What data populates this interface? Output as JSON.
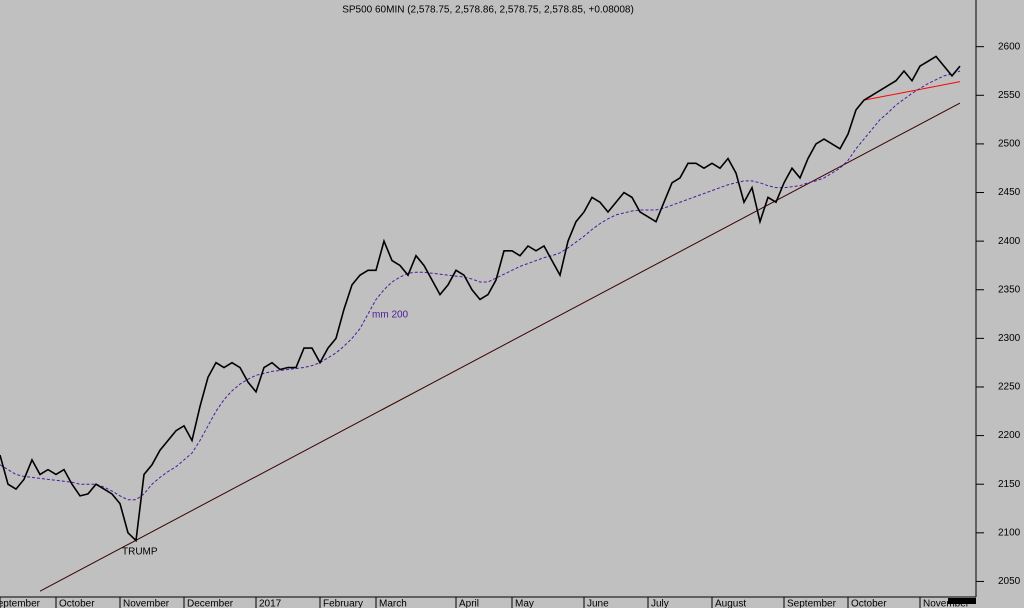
{
  "chart_data": {
    "type": "line",
    "title": "SP500 60MIN (2,578.75, 2,578.86, 2,578.75, 2,578.85, +0.08008)",
    "categories": [
      "September",
      null,
      null,
      null,
      null,
      null,
      null,
      "October",
      null,
      null,
      null,
      null,
      null,
      null,
      null,
      "November",
      null,
      null,
      null,
      null,
      null,
      null,
      null,
      "December",
      null,
      null,
      null,
      null,
      null,
      null,
      null,
      null,
      "2017",
      null,
      null,
      null,
      null,
      null,
      null,
      null,
      "February",
      null,
      null,
      null,
      null,
      null,
      null,
      "March",
      null,
      null,
      null,
      null,
      null,
      null,
      null,
      null,
      null,
      "April",
      null,
      null,
      null,
      null,
      null,
      null,
      "May",
      null,
      null,
      null,
      null,
      null,
      null,
      null,
      null,
      "June",
      null,
      null,
      null,
      null,
      null,
      null,
      null,
      "July",
      null,
      null,
      null,
      null,
      null,
      null,
      null,
      "August",
      null,
      null,
      null,
      null,
      null,
      null,
      null,
      null,
      "September",
      null,
      null,
      null,
      null,
      null,
      null,
      null,
      "October",
      null,
      null,
      null,
      null,
      null,
      null,
      null,
      null,
      "November",
      null,
      null,
      null,
      null,
      null
    ],
    "series": [
      {
        "name": "SP500",
        "color": "#000000",
        "values": [
          2180,
          2150,
          2145,
          2155,
          2175,
          2160,
          2165,
          2160,
          2165,
          2150,
          2138,
          2140,
          2150,
          2145,
          2140,
          2130,
          2100,
          2092,
          2160,
          2170,
          2185,
          2195,
          2205,
          2210,
          2195,
          2230,
          2260,
          2275,
          2270,
          2275,
          2270,
          2255,
          2245,
          2270,
          2275,
          2268,
          2270,
          2270,
          2290,
          2290,
          2275,
          2290,
          2300,
          2330,
          2355,
          2365,
          2370,
          2370,
          2400,
          2380,
          2375,
          2365,
          2385,
          2375,
          2360,
          2345,
          2355,
          2370,
          2365,
          2350,
          2340,
          2345,
          2360,
          2390,
          2390,
          2385,
          2395,
          2390,
          2395,
          2380,
          2365,
          2400,
          2420,
          2430,
          2445,
          2440,
          2430,
          2440,
          2450,
          2445,
          2430,
          2425,
          2420,
          2440,
          2460,
          2465,
          2480,
          2480,
          2475,
          2480,
          2475,
          2485,
          2470,
          2440,
          2455,
          2420,
          2445,
          2440,
          2460,
          2475,
          2465,
          2485,
          2500,
          2505,
          2500,
          2495,
          2510,
          2535,
          2545,
          2550,
          2555,
          2560,
          2565,
          2575,
          2565,
          2580,
          2585,
          2590,
          2580,
          2570,
          2580
        ]
      },
      {
        "name": "mm 200",
        "color": "#4b1a9e",
        "dashed": true,
        "values": [
          2170,
          2165,
          2160,
          2158,
          2157,
          2156,
          2155,
          2154,
          2153,
          2152,
          2150,
          2150,
          2150,
          2147,
          2143,
          2138,
          2134,
          2134,
          2140,
          2150,
          2157,
          2163,
          2168,
          2175,
          2182,
          2195,
          2210,
          2225,
          2237,
          2246,
          2253,
          2258,
          2262,
          2264,
          2266,
          2267,
          2268,
          2269,
          2270,
          2272,
          2275,
          2280,
          2285,
          2292,
          2300,
          2310,
          2325,
          2340,
          2350,
          2358,
          2363,
          2367,
          2368,
          2368,
          2367,
          2366,
          2365,
          2364,
          2363,
          2361,
          2358,
          2358,
          2362,
          2366,
          2370,
          2374,
          2377,
          2380,
          2383,
          2385,
          2388,
          2393,
          2399,
          2405,
          2412,
          2418,
          2423,
          2427,
          2429,
          2431,
          2432,
          2432,
          2432,
          2434,
          2437,
          2440,
          2443,
          2446,
          2449,
          2452,
          2455,
          2458,
          2460,
          2462,
          2462,
          2460,
          2457,
          2455,
          2455,
          2456,
          2457,
          2460,
          2462,
          2465,
          2470,
          2475,
          2483,
          2495,
          2505,
          2515,
          2525,
          2532,
          2540,
          2546,
          2552,
          2557,
          2562,
          2566,
          2570,
          2572,
          2575
        ]
      }
    ],
    "trendlines": [
      {
        "color": "#3a0000",
        "at": [
          5,
          120
        ],
        "values": [
          2040,
          2542
        ]
      },
      {
        "color": "#ff0000",
        "at": [
          108,
          120
        ],
        "values": [
          2545,
          2564
        ]
      }
    ],
    "annotations": [
      "mm 200",
      "TRUMP"
    ],
    "ylim": [
      2034,
      2648
    ],
    "yticks": [
      2050,
      2100,
      2150,
      2200,
      2250,
      2300,
      2350,
      2400,
      2450,
      2500,
      2550,
      2600
    ]
  }
}
